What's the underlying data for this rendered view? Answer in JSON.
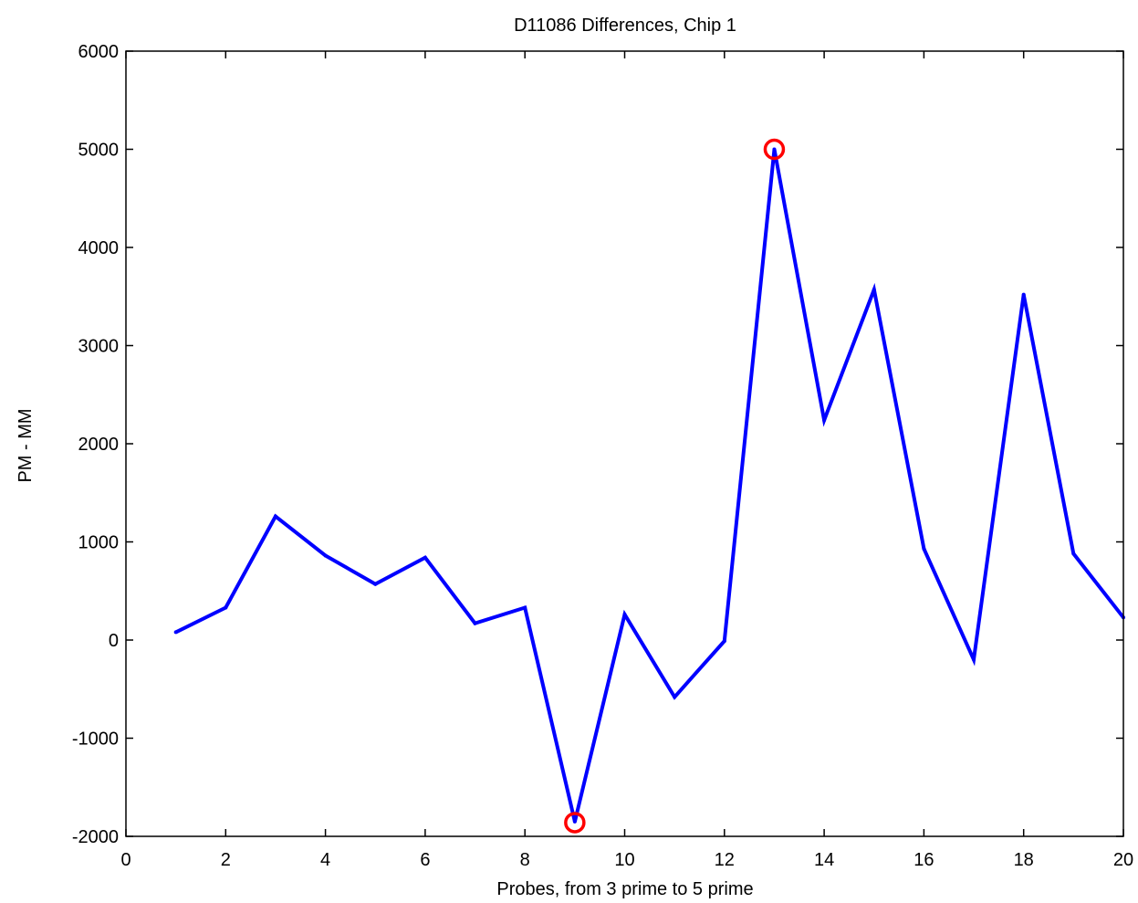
{
  "chart_data": {
    "type": "line",
    "title": "D11086 Differences, Chip 1",
    "xlabel": "Probes, from 3 prime to 5 prime",
    "ylabel": "PM - MM",
    "xlim": [
      0,
      20
    ],
    "ylim": [
      -2000,
      6000
    ],
    "xticks": [
      0,
      2,
      4,
      6,
      8,
      10,
      12,
      14,
      16,
      18,
      20
    ],
    "yticks": [
      -2000,
      -1000,
      0,
      1000,
      2000,
      3000,
      4000,
      5000,
      6000
    ],
    "grid": false,
    "legend": "none",
    "series": [
      {
        "x": [
          1,
          2,
          3,
          4,
          5,
          6,
          7,
          8,
          9,
          10,
          11,
          12,
          13,
          14,
          15,
          16,
          17,
          18,
          19,
          20
        ],
        "values": [
          80,
          330,
          1260,
          860,
          570,
          840,
          170,
          330,
          -1850,
          260,
          -580,
          -10,
          5000,
          2240,
          3570,
          930,
          -200,
          3520,
          880,
          230
        ],
        "color": "#0000ff"
      }
    ],
    "markers": [
      {
        "x": 9,
        "y": -1860,
        "color": "#ff0000",
        "shape": "circle"
      },
      {
        "x": 13,
        "y": 5000,
        "color": "#ff0000",
        "shape": "circle"
      }
    ]
  }
}
